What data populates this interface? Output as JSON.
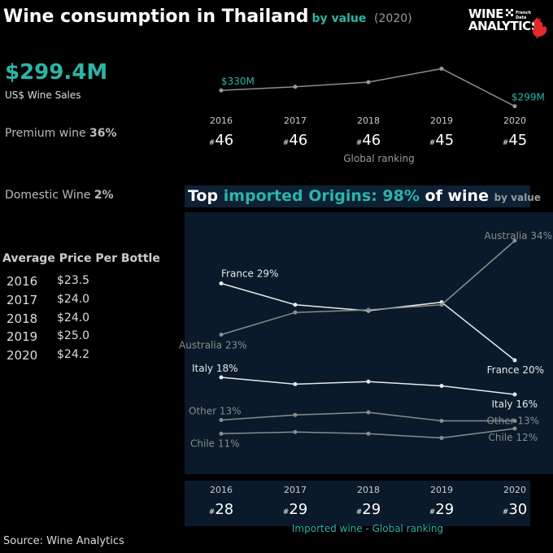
{
  "header": {
    "title": "Wine consumption in Thailand",
    "by_value": "by value",
    "year": "(2020)"
  },
  "logo": {
    "line1": "WINE",
    "line2": "ANALYTICS",
    "small_line1": "French",
    "small_line2": "Data"
  },
  "summary": {
    "sales_value": "$299.4M",
    "sales_label": "US$ Wine Sales",
    "premium_label": "Premium wine",
    "premium_value": "36%",
    "domestic_label": "Domestic Wine",
    "domestic_value": "2%"
  },
  "avg_price": {
    "title": "Average Price Per Bottle",
    "rows": [
      {
        "year": "2016",
        "value": "$23.5"
      },
      {
        "year": "2017",
        "value": "$24.0"
      },
      {
        "year": "2018",
        "value": "$24.0"
      },
      {
        "year": "2019",
        "value": "$25.0"
      },
      {
        "year": "2020",
        "value": "$24.2"
      }
    ]
  },
  "top_origins": {
    "title_part1": "Top",
    "title_part2": "imported Origins: 98%",
    "title_part3": "of wine",
    "title_part4": "by value"
  },
  "source": "Source: Wine Analytics",
  "colors": {
    "teal": "#2bb5a7",
    "panel": "#0a1a2a",
    "line_light": "#e8e8e8",
    "line_grey": "#8c8c8c"
  },
  "chart_data": [
    {
      "type": "line",
      "name": "sales",
      "x": [
        "2016",
        "2017",
        "2018",
        "2019",
        "2020"
      ],
      "values": [
        330,
        337,
        346,
        372,
        299.4
      ],
      "labels": {
        "start": "$330M",
        "end": "$299M"
      },
      "ylim": [
        280,
        390
      ],
      "ranking_prefix": "#",
      "ranking": [
        "46",
        "46",
        "46",
        "45",
        "45"
      ],
      "ranking_caption": "Global ranking"
    },
    {
      "type": "line",
      "name": "origins",
      "x": [
        "2016",
        "2017",
        "2018",
        "2019",
        "2020"
      ],
      "ylim": [
        8,
        36
      ],
      "series": [
        {
          "name": "France",
          "values": [
            29,
            26.5,
            25.8,
            26.8,
            20
          ],
          "start_label": "France 29%",
          "end_label": "France 20%",
          "tone": "light"
        },
        {
          "name": "Australia",
          "values": [
            23,
            25.6,
            25.9,
            26.5,
            34
          ],
          "start_label": "Australia 23%",
          "end_label": "Australia 34%",
          "tone": "grey"
        },
        {
          "name": "Italy",
          "values": [
            18,
            17.2,
            17.5,
            17,
            16
          ],
          "start_label": "Italy 18%",
          "end_label": "Italy 16%",
          "tone": "light"
        },
        {
          "name": "Other",
          "values": [
            13,
            13.6,
            13.9,
            12.9,
            12.9
          ],
          "start_label": "Other 13%",
          "end_label": "Other 13%",
          "tone": "grey"
        },
        {
          "name": "Chile",
          "values": [
            11.4,
            11.6,
            11.4,
            10.9,
            12
          ],
          "start_label": "Chile 11%",
          "end_label": "Chile 12%",
          "tone": "grey"
        }
      ],
      "ranking_prefix": "#",
      "ranking": [
        "28",
        "29",
        "29",
        "29",
        "30"
      ],
      "ranking_caption": "Imported wine - Global ranking"
    }
  ]
}
